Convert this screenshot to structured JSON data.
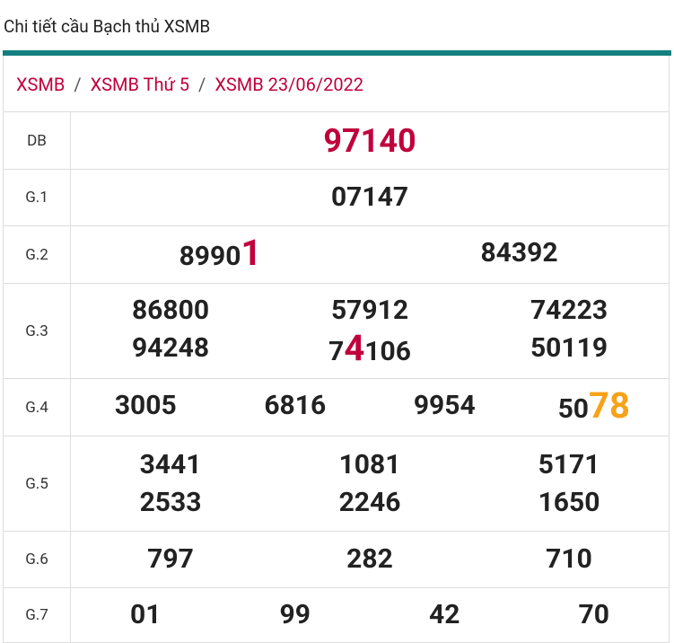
{
  "header": {
    "title": "Chi tiết cầu Bạch thủ XSMB"
  },
  "breadcrumb": {
    "items": [
      "XSMB",
      "XSMB Thứ 5",
      "XSMB 23/06/2022"
    ],
    "separator": "/"
  },
  "table": {
    "rows": [
      {
        "label": "DB",
        "numbers": [
          "97140"
        ],
        "special": true
      },
      {
        "label": "G.1",
        "numbers": [
          "07147"
        ]
      },
      {
        "label": "G.2",
        "numbers": [
          {
            "pre": "8990",
            "hl": "1",
            "hl_color": "#c0003c"
          },
          "84392"
        ]
      },
      {
        "label": "G.3",
        "numbers": [
          "86800",
          "57912",
          "74223",
          "94248",
          {
            "pre": "7",
            "hl": "4",
            "post": "106",
            "hl_color": "#c0003c"
          },
          "50119"
        ]
      },
      {
        "label": "G.4",
        "numbers": [
          "3005",
          "6816",
          "9954",
          {
            "pre": "50",
            "hl": "78",
            "hl_color": "#f7a21b"
          }
        ]
      },
      {
        "label": "G.5",
        "numbers": [
          "3441",
          "1081",
          "5171",
          "2533",
          "2246",
          "1650"
        ]
      },
      {
        "label": "G.6",
        "numbers": [
          "797",
          "282",
          "710"
        ]
      },
      {
        "label": "G.7",
        "numbers": [
          "01",
          "99",
          "42",
          "70"
        ]
      }
    ]
  }
}
